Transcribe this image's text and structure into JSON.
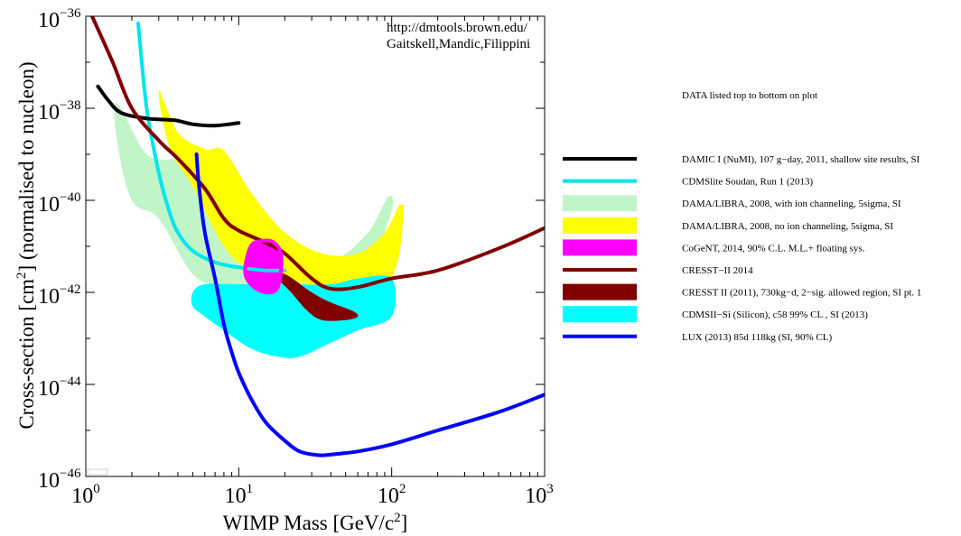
{
  "chart_data": {
    "type": "line",
    "xlabel": "WIMP Mass [GeV/c",
    "xlabel_sup": "2",
    "xlabel_tail": "]",
    "ylabel": "Cross-section [cm",
    "ylabel_sup": "2",
    "ylabel_tail": "] (normalised to nucleon)",
    "x_scale": "log",
    "y_scale": "log",
    "xlim": [
      1,
      1000
    ],
    "ylim": [
      1e-46,
      1e-36
    ],
    "grid": false,
    "legend_placement": "right, outside plot",
    "x_ticks": [
      {
        "base": "10",
        "exp": "0"
      },
      {
        "base": "10",
        "exp": "1"
      },
      {
        "base": "10",
        "exp": "2"
      },
      {
        "base": "10",
        "exp": "3"
      }
    ],
    "y_ticks": [
      {
        "base": "10",
        "exp": "−36"
      },
      {
        "base": "10",
        "exp": "−38"
      },
      {
        "base": "10",
        "exp": "−40"
      },
      {
        "base": "10",
        "exp": "−42"
      },
      {
        "base": "10",
        "exp": "−44"
      },
      {
        "base": "10",
        "exp": "−46"
      }
    ],
    "credit": [
      "http://dmtools.brown.edu/",
      "Gaitskell,Mandic,Filippini"
    ],
    "legend_header": "DATA listed top to bottom on plot",
    "series": [
      {
        "name": "DAMIC I (NuMI), 107 g−day, 2011, shallow site results, SI",
        "kind": "line",
        "color": "#000000",
        "points": [
          [
            1.2,
            3e-38
          ],
          [
            1.4,
            1.5e-38
          ],
          [
            1.7,
            8e-39
          ],
          [
            2.5,
            6e-39
          ],
          [
            3.8,
            5.5e-39
          ],
          [
            5,
            4.5e-39
          ],
          [
            7,
            4.2e-39
          ],
          [
            10,
            4.8e-39
          ]
        ]
      },
      {
        "name": "CDMSlite Soudan, Run 1 (2013)",
        "kind": "line",
        "color": "#00e5ee",
        "points": [
          [
            2.2,
            7e-37
          ],
          [
            2.5,
            1e-38
          ],
          [
            3,
            4e-40
          ],
          [
            3.5,
            6e-41
          ],
          [
            4,
            2e-41
          ],
          [
            5,
            8e-42
          ],
          [
            7,
            4.5e-42
          ],
          [
            10,
            3.5e-42
          ],
          [
            15,
            3e-42
          ],
          [
            20,
            3e-42
          ]
        ]
      },
      {
        "name": "DAMA/LIBRA, 2008, with ion channeling, 5sigma, SI",
        "kind": "region",
        "color": "#c0f5c8",
        "outline": [
          [
            1.6,
            1.3e-38
          ],
          [
            2.5,
            1e-39
          ],
          [
            4,
            8e-40
          ],
          [
            6,
            9e-40
          ],
          [
            10,
            1.5e-40
          ],
          [
            20,
            1.2e-41
          ],
          [
            40,
            5e-42
          ],
          [
            70,
            2e-41
          ],
          [
            95,
            1.2e-40
          ],
          [
            100,
            6e-41
          ],
          [
            70,
            3e-42
          ],
          [
            50,
            2e-42
          ],
          [
            30,
            1.3e-42
          ],
          [
            15,
            1.2e-42
          ],
          [
            8,
            1.3e-42
          ],
          [
            5,
            2.5e-42
          ],
          [
            3,
            4e-41
          ],
          [
            2,
            1e-40
          ],
          [
            1.6,
            2e-39
          ]
        ]
      },
      {
        "name": "DAMA/LIBRA, 2008, no ion channeling, 5sigma, SI",
        "kind": "region",
        "color": "#ffff00",
        "outline": [
          [
            3,
            2.5e-38
          ],
          [
            4,
            3e-39
          ],
          [
            6,
            1.3e-39
          ],
          [
            8,
            1.2e-39
          ],
          [
            12,
            1.5e-40
          ],
          [
            20,
            2e-41
          ],
          [
            35,
            7e-42
          ],
          [
            60,
            7e-42
          ],
          [
            90,
            2e-41
          ],
          [
            110,
            7e-41
          ],
          [
            115,
            8e-41
          ],
          [
            120,
            6e-41
          ],
          [
            110,
            5e-42
          ],
          [
            90,
            1.5e-42
          ],
          [
            60,
            1e-42
          ],
          [
            35,
            1.3e-42
          ],
          [
            20,
            2e-42
          ],
          [
            12,
            3e-42
          ],
          [
            8,
            1e-41
          ],
          [
            5,
            2e-40
          ],
          [
            3.5,
            1.5e-39
          ]
        ]
      },
      {
        "name": "CoGeNT, 2014, 90% C.L. M.L.+ floating sys.",
        "kind": "region",
        "color": "#ff00ff",
        "outline": [
          [
            11,
            3e-42
          ],
          [
            12,
            1e-41
          ],
          [
            14,
            1.3e-41
          ],
          [
            17,
            1.2e-41
          ],
          [
            19,
            6e-42
          ],
          [
            18,
            1.3e-42
          ],
          [
            15,
            1e-42
          ],
          [
            12,
            1.5e-42
          ]
        ]
      },
      {
        "name": "CRESST−II 2014",
        "kind": "line",
        "color": "#800000",
        "points": [
          [
            1.1,
            1e-36
          ],
          [
            1.5,
            1e-37
          ],
          [
            2,
            1e-38
          ],
          [
            3,
            2e-39
          ],
          [
            4,
            8e-40
          ],
          [
            6,
            1.8e-40
          ],
          [
            8,
            4e-41
          ],
          [
            10,
            2.2e-41
          ],
          [
            15,
            1.2e-41
          ],
          [
            20,
            7e-42
          ],
          [
            30,
            2e-42
          ],
          [
            40,
            1.2e-42
          ],
          [
            60,
            1.3e-42
          ],
          [
            100,
            2e-42
          ],
          [
            200,
            3e-42
          ],
          [
            500,
            9e-42
          ],
          [
            1000,
            2.5e-41
          ]
        ]
      },
      {
        "name": "CRESST II (2011),  730kg−d, 2−sig. allowed region, SI pt. 1",
        "kind": "region",
        "color": "#800000",
        "outline": [
          [
            17,
            2e-42
          ],
          [
            20,
            2.5e-42
          ],
          [
            30,
            1e-42
          ],
          [
            40,
            6e-43
          ],
          [
            55,
            4e-43
          ],
          [
            60,
            3e-43
          ],
          [
            50,
            2.5e-43
          ],
          [
            35,
            2.5e-43
          ],
          [
            28,
            4e-43
          ],
          [
            22,
            1e-42
          ],
          [
            19,
            1.6e-42
          ]
        ]
      },
      {
        "name": "CDMSII−Si (Silicon), c58 99% CL , SI (2013)",
        "kind": "region",
        "color": "#00ffff",
        "outline": [
          [
            5,
            1e-42
          ],
          [
            6,
            1.5e-42
          ],
          [
            10,
            1.5e-42
          ],
          [
            20,
            1.5e-42
          ],
          [
            40,
            1.5e-42
          ],
          [
            60,
            2e-42
          ],
          [
            100,
            2e-42
          ],
          [
            100,
            3e-43
          ],
          [
            60,
            1.5e-43
          ],
          [
            40,
            8e-44
          ],
          [
            25,
            4e-44
          ],
          [
            18,
            4e-44
          ],
          [
            12,
            6e-44
          ],
          [
            8,
            1.5e-43
          ],
          [
            6,
            3e-43
          ],
          [
            5,
            5e-43
          ]
        ]
      },
      {
        "name": "LUX (2013) 85d 118kg (SI, 90% CL)",
        "kind": "line",
        "color": "#0000ff",
        "points": [
          [
            5.3,
            1e-39
          ],
          [
            5.5,
            2e-40
          ],
          [
            6,
            2e-41
          ],
          [
            7,
            2e-42
          ],
          [
            8,
            2e-43
          ],
          [
            9,
            5e-44
          ],
          [
            10,
            1.8e-44
          ],
          [
            12,
            5e-45
          ],
          [
            15,
            1.5e-45
          ],
          [
            20,
            6e-46
          ],
          [
            25,
            3.5e-46
          ],
          [
            33,
            2.9e-46
          ],
          [
            40,
            3e-46
          ],
          [
            60,
            3.5e-46
          ],
          [
            100,
            5e-46
          ],
          [
            200,
            1e-45
          ],
          [
            500,
            2.5e-45
          ],
          [
            1000,
            6e-45
          ]
        ]
      }
    ]
  }
}
